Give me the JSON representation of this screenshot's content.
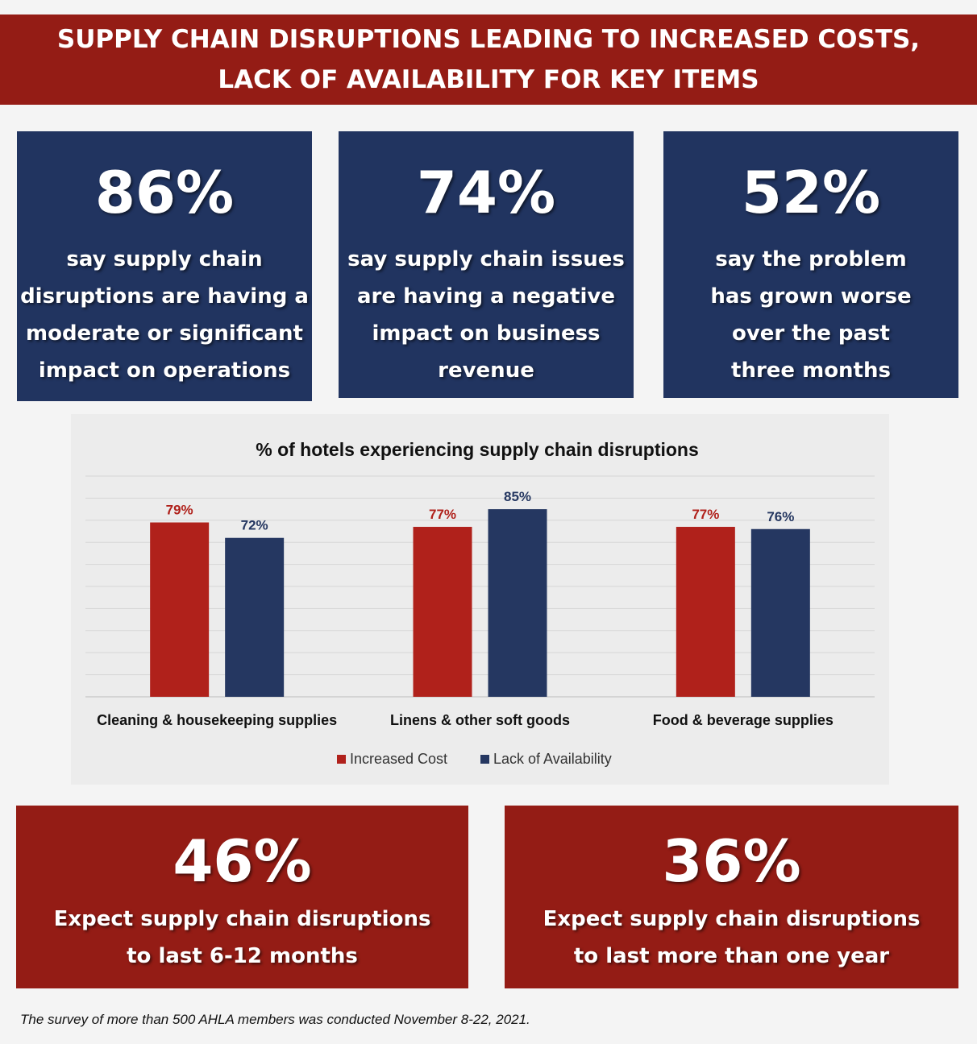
{
  "banner": {
    "line1": "SUPPLY CHAIN DISRUPTIONS LEADING TO INCREASED COSTS,",
    "line2": "LACK OF AVAILABILITY FOR KEY ITEMS"
  },
  "stats_top": [
    {
      "value": "86%",
      "text": "say supply chain\ndisruptions are having a\nmoderate or significant\nimpact on operations"
    },
    {
      "value": "74%",
      "text": "say supply chain issues\nare having a negative\nimpact on business\nrevenue"
    },
    {
      "value": "52%",
      "text": "say the problem\nhas grown worse\nover the past\nthree months"
    }
  ],
  "stats_bottom": [
    {
      "value": "46%",
      "text": "Expect supply chain disruptions\nto last 6-12 months"
    },
    {
      "value": "36%",
      "text": "Expect supply chain disruptions\nto last more than one year"
    }
  ],
  "colors": {
    "increased_cost": "#b0211b",
    "lack_of_availability": "#253761",
    "banner": "#941c15",
    "panel_blue": "#213460"
  },
  "chart_data": {
    "type": "bar",
    "title": "% of hotels experiencing supply chain disruptions",
    "categories": [
      "Cleaning & housekeeping supplies",
      "Linens & other soft goods",
      "Food & beverage supplies"
    ],
    "series": [
      {
        "name": "Increased Cost",
        "values": [
          79,
          77,
          77
        ],
        "labels": [
          "79%",
          "77%",
          "77%"
        ]
      },
      {
        "name": "Lack of Availability",
        "values": [
          72,
          85,
          76
        ],
        "labels": [
          "72%",
          "85%",
          "76%"
        ]
      }
    ],
    "ylim": [
      0,
      100
    ],
    "grid": true,
    "legend_position": "bottom"
  },
  "footnote": "The survey of more than 500 AHLA members was conducted November 8-22, 2021."
}
